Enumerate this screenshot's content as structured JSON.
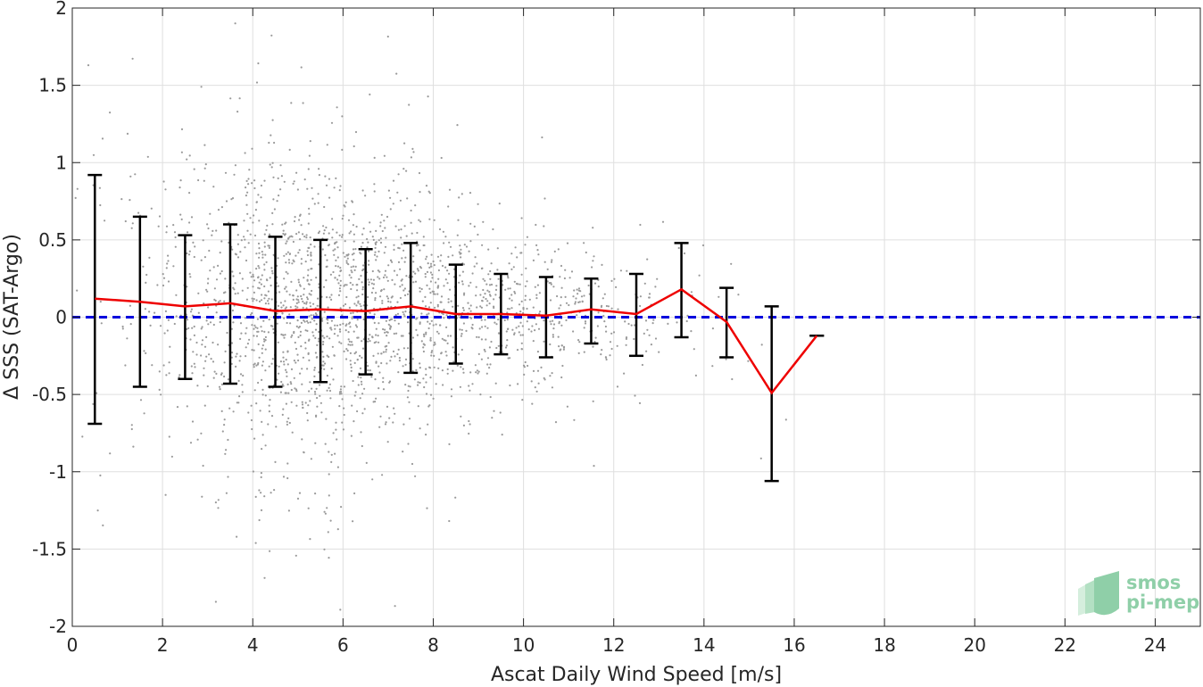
{
  "chart_data": {
    "type": "scatter",
    "xlabel": "Ascat Daily Wind Speed [m/s]",
    "ylabel": "Δ SSS (SAT-Argo)",
    "xlim": [
      0,
      25
    ],
    "ylim": [
      -2,
      2
    ],
    "xticks": [
      0,
      2,
      4,
      6,
      8,
      10,
      12,
      14,
      16,
      18,
      20,
      22,
      24
    ],
    "yticks": [
      2,
      1.5,
      1,
      0.5,
      0,
      -0.5,
      -1,
      -1.5,
      -2
    ],
    "xtick_labels": [
      "0",
      "2",
      "4",
      "6",
      "8",
      "10",
      "12",
      "14",
      "16",
      "18",
      "20",
      "22",
      "24"
    ],
    "ytick_labels": [
      "2",
      "1.5",
      "1",
      "0.5",
      "0",
      "-0.5",
      "-1",
      "-1.5",
      "-2"
    ],
    "grid": true,
    "reference_line": {
      "y": 0,
      "color": "#0000dd",
      "style": "dashed"
    },
    "bins": {
      "x": [
        0.5,
        1.5,
        2.5,
        3.5,
        4.5,
        5.5,
        6.5,
        7.5,
        8.5,
        9.5,
        10.5,
        11.5,
        12.5,
        13.5,
        14.5,
        15.5,
        16.5
      ],
      "mean": [
        0.12,
        0.1,
        0.07,
        0.09,
        0.04,
        0.05,
        0.04,
        0.07,
        0.02,
        0.02,
        0.01,
        0.05,
        0.02,
        0.18,
        -0.03,
        -0.49,
        -0.12
      ],
      "upper": [
        0.92,
        0.65,
        0.53,
        0.6,
        0.52,
        0.5,
        0.44,
        0.48,
        0.34,
        0.28,
        0.26,
        0.25,
        0.28,
        0.48,
        0.19,
        0.07,
        -0.12
      ],
      "lower": [
        -0.69,
        -0.45,
        -0.4,
        -0.43,
        -0.45,
        -0.42,
        -0.37,
        -0.36,
        -0.3,
        -0.24,
        -0.26,
        -0.17,
        -0.25,
        -0.13,
        -0.26,
        -1.06,
        -0.12
      ],
      "mean_color": "#ee0000",
      "errorbar_color": "#000000"
    },
    "scatter": {
      "color": "#9a9a9a",
      "approx_points": 2200
    },
    "logo": {
      "line1": "smos",
      "line2": "pi-mep"
    }
  }
}
